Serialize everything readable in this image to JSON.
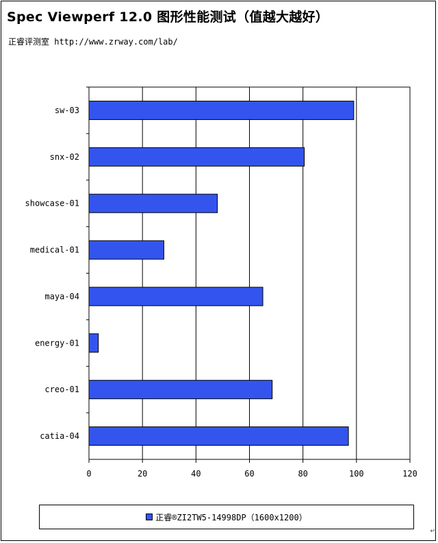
{
  "header": {
    "title": "Spec Viewperf 12.0 图形性能测试（值越大越好）",
    "subtitle": "正睿评测室 http://www.zrway.com/lab/"
  },
  "colors": {
    "bar": "#3355ee",
    "bar_border": "#000000",
    "grid": "#000000"
  },
  "chart_data": {
    "type": "bar",
    "orientation": "horizontal",
    "title": "Spec Viewperf 12.0 图形性能测试（值越大越好）",
    "xlabel": "",
    "ylabel": "",
    "categories": [
      "sw-03",
      "snx-02",
      "showcase-01",
      "medical-01",
      "maya-04",
      "energy-01",
      "creo-01",
      "catia-04"
    ],
    "series": [
      {
        "name": "正睿®ZI2TW5-14998DP（1600x1200）",
        "values": [
          99,
          80.5,
          48,
          28,
          65,
          3.5,
          68.5,
          97
        ]
      }
    ],
    "xlim": [
      0,
      120
    ],
    "x_ticks": [
      0,
      20,
      40,
      60,
      80,
      100,
      120
    ],
    "grid": true,
    "legend_position": "bottom"
  },
  "legend": {
    "label": "正睿®ZI2TW5-14998DP（1600x1200）"
  },
  "corner_mark": "↵"
}
